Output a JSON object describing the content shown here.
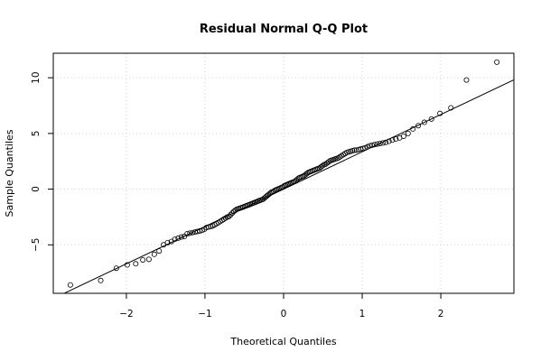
{
  "chart_data": {
    "type": "scatter",
    "title": "Residual Normal Q-Q Plot",
    "xlabel": "Theoretical Quantiles",
    "ylabel": "Sample Quantiles",
    "xlim": [
      -2.93,
      2.93
    ],
    "ylim": [
      -9.35,
      12.2
    ],
    "xticks": [
      -2,
      -1,
      0,
      1,
      2
    ],
    "xtick_labels": [
      "−2",
      "−1",
      "0",
      "1",
      "2"
    ],
    "yticks": [
      -5,
      0,
      5,
      10
    ],
    "ytick_labels": [
      "−5",
      "0",
      "5",
      "10"
    ],
    "grid": true,
    "reference_line": {
      "intercept": 0.0,
      "slope": 3.35
    },
    "n_points": 150,
    "colors": {
      "points": "#000000",
      "line": "#000000",
      "grid": "#d3d3d3",
      "box": "#000000"
    },
    "sample_quantiles": [
      -8.6,
      -8.2,
      -7.1,
      -6.8,
      -6.7,
      -6.35,
      -6.3,
      -5.85,
      -5.55,
      -5.0,
      -4.8,
      -4.7,
      -4.5,
      -4.4,
      -4.3,
      -4.25,
      -4.0,
      -3.95,
      -3.85,
      -3.8,
      -3.7,
      -3.6,
      -3.45,
      -3.4,
      -3.35,
      -3.3,
      -3.2,
      -3.1,
      -3.0,
      -2.9,
      -2.8,
      -2.7,
      -2.6,
      -2.45,
      -2.3,
      -2.15,
      -2.0,
      -1.9,
      -1.8,
      -1.75,
      -1.7,
      -1.65,
      -1.6,
      -1.55,
      -1.5,
      -1.4,
      -1.35,
      -1.3,
      -1.25,
      -1.2,
      -1.15,
      -1.1,
      -1.05,
      -1.0,
      -0.95,
      -0.9,
      -0.8,
      -0.7,
      -0.6,
      -0.5,
      -0.4,
      -0.3,
      -0.2,
      -0.1,
      -0.05,
      0.0,
      0.05,
      0.1,
      0.15,
      0.2,
      0.3,
      0.4,
      0.5,
      0.55,
      0.6,
      0.65,
      0.7,
      0.8,
      0.9,
      1.0,
      1.05,
      1.1,
      1.15,
      1.2,
      1.3,
      1.4,
      1.5,
      1.55,
      1.6,
      1.7,
      1.75,
      1.8,
      1.85,
      1.9,
      2.0,
      2.1,
      2.2,
      2.35,
      2.45,
      2.55,
      2.6,
      2.65,
      2.7,
      2.8,
      2.9,
      3.0,
      3.1,
      3.2,
      3.3,
      3.35,
      3.4,
      3.45,
      3.5,
      3.5,
      3.55,
      3.6,
      3.65,
      3.7,
      3.8,
      3.9,
      4.0,
      4.1,
      4.15,
      4.2,
      4.3,
      4.4,
      4.5,
      4.6,
      4.75,
      5.0,
      5.4,
      5.7,
      6.0,
      6.3,
      6.8,
      7.3,
      9.8,
      11.4,
      4.05,
      3.95,
      -3.75,
      -3.9,
      2.75,
      1.65,
      -1.45,
      0.35,
      0.45,
      -0.25,
      -2.5,
      2.25
    ]
  }
}
